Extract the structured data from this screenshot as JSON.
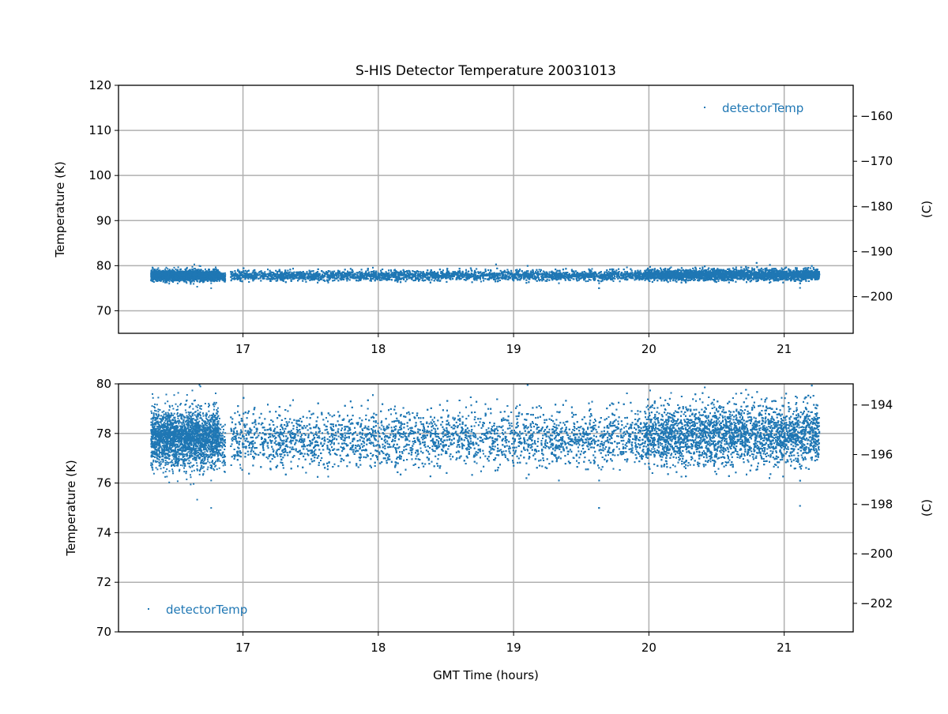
{
  "chart_data": {
    "type": "scatter",
    "title": "S-HIS Detector Temperature 20031013",
    "xlabel": "GMT Time (hours)",
    "series_name": "detectorTemp",
    "color": "#1f77b4",
    "x_range_of_data": [
      16.32,
      21.26
    ],
    "data_gap": [
      16.87,
      16.91
    ],
    "segments": [
      {
        "x": [
          16.32,
          16.82
        ],
        "mean": 77.8,
        "std": 0.55,
        "count": 2600
      },
      {
        "x": [
          16.82,
          16.87
        ],
        "mean": 77.6,
        "std": 0.5,
        "count": 90
      },
      {
        "x": [
          16.91,
          19.97
        ],
        "mean": 77.8,
        "std": 0.55,
        "count": 7000
      },
      {
        "x": [
          19.97,
          21.26
        ],
        "mean": 77.95,
        "std": 0.6,
        "count": 6500
      }
    ],
    "panels": [
      {
        "name": "top",
        "ylabel": "Temperature (K)",
        "ylabel_right": "(C)",
        "xlim": [
          16.08,
          21.51
        ],
        "ylim": [
          65,
          120
        ],
        "xticks": [
          "17",
          "18",
          "19",
          "20",
          "21"
        ],
        "yticks": [
          "70",
          "80",
          "90",
          "100",
          "110",
          "120"
        ],
        "yticks_right": [
          "−200",
          "−190",
          "−180",
          "−170",
          "−160"
        ],
        "legend": "detectorTemp",
        "legend_loc": "upper right",
        "grid": true
      },
      {
        "name": "bottom",
        "ylabel": "Temperature (K)",
        "ylabel_right": "(C)",
        "xlim": [
          16.08,
          21.51
        ],
        "ylim": [
          70,
          80
        ],
        "xticks": [
          "17",
          "18",
          "19",
          "20",
          "21"
        ],
        "yticks": [
          "70",
          "72",
          "74",
          "76",
          "78",
          "80"
        ],
        "yticks_right": [
          "−202",
          "−200",
          "−198",
          "−196",
          "−194"
        ],
        "legend": "detectorTemp",
        "legend_loc": "lower left",
        "grid": true
      }
    ]
  }
}
